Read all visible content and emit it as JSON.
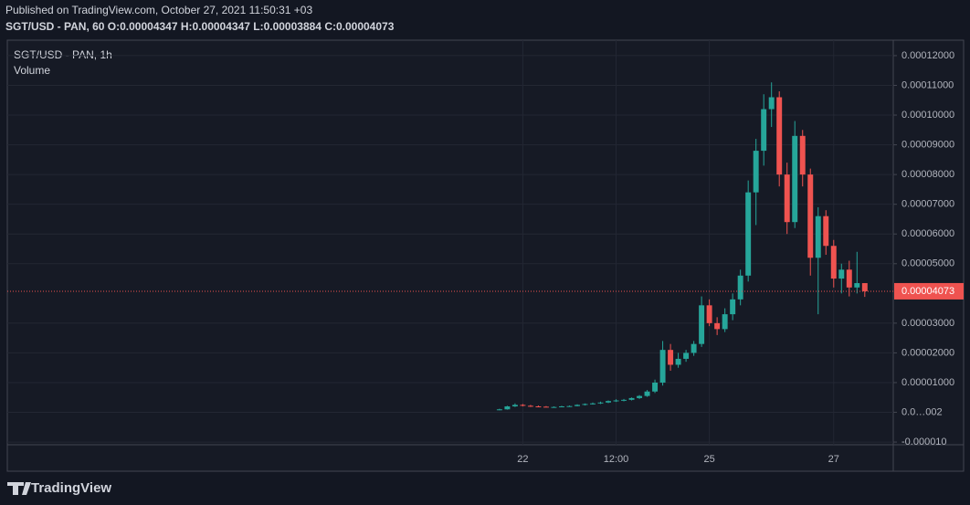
{
  "header": {
    "published": "Published on TradingView.com, October 27, 2021 11:50:31 +03",
    "ohlc": "SGT/USD - PAN, 60 O:0.00004347 H:0.00004347 L:0.00003884 C:0.00004073"
  },
  "chart_data": {
    "type": "candlestick",
    "title": "SGT/USD - PAN, 1h",
    "subtitle": "Volume",
    "up_color": "#26a69a",
    "down_color": "#ef5350",
    "grid": true,
    "x": [
      -9,
      -6,
      -3,
      0,
      3,
      6,
      9,
      12,
      15,
      18,
      21,
      24,
      27,
      30,
      33,
      36,
      39,
      42,
      45,
      48,
      51,
      54,
      57,
      60,
      63,
      66,
      69,
      72,
      75,
      78,
      81,
      84,
      87,
      90,
      93,
      96,
      99,
      102,
      105,
      108,
      111,
      114,
      117,
      120,
      123,
      126,
      129,
      132
    ],
    "open": [
      8e-07,
      1e-06,
      2e-06,
      2.5e-06,
      2.2e-06,
      2e-06,
      1.9e-06,
      1.8e-06,
      1.8e-06,
      2e-06,
      2.1e-06,
      2.5e-06,
      2.8e-06,
      3e-06,
      3.3e-06,
      3.8e-06,
      4e-06,
      4.2e-06,
      4.8e-06,
      5.5e-06,
      7e-06,
      1e-05,
      2.1e-05,
      1.6e-05,
      1.8e-05,
      2e-05,
      2.3e-05,
      3.6e-05,
      3e-05,
      2.8e-05,
      3.3e-05,
      3.8e-05,
      4.6e-05,
      7.4e-05,
      8.8e-05,
      0.000102,
      0.000106,
      8e-05,
      6.4e-05,
      9.3e-05,
      8e-05,
      5.2e-05,
      6.6e-05,
      5.6e-05,
      4.5e-05,
      4.8e-05,
      4.2e-05,
      4.347e-05
    ],
    "high": [
      1.2e-06,
      2.2e-06,
      3e-06,
      2.8e-06,
      2.5e-06,
      2.3e-06,
      2.1e-06,
      2e-06,
      2.2e-06,
      2.3e-06,
      2.7e-06,
      3e-06,
      3.3e-06,
      3.6e-06,
      4e-06,
      4.4e-06,
      4.5e-06,
      5e-06,
      5.8e-06,
      7.5e-06,
      1.1e-05,
      2.4e-05,
      2.3e-05,
      2e-05,
      2.1e-05,
      2.4e-05,
      3.9e-05,
      3.8e-05,
      3.2e-05,
      3.5e-05,
      4e-05,
      4.8e-05,
      7.8e-05,
      9.2e-05,
      0.000107,
      0.000111,
      0.000108,
      8.4e-05,
      9.8e-05,
      9.5e-05,
      8.2e-05,
      6.9e-05,
      6.8e-05,
      5.8e-05,
      5e-05,
      5.1e-05,
      5.4e-05,
      4.347e-05
    ],
    "low": [
      7e-07,
      9e-07,
      1.8e-06,
      2e-06,
      1.8e-06,
      1.7e-06,
      1.7e-06,
      1.6e-06,
      1.7e-06,
      1.9e-06,
      2e-06,
      2.3e-06,
      2.6e-06,
      2.8e-06,
      3.1e-06,
      3.5e-06,
      3.7e-06,
      4e-06,
      4.5e-06,
      5.2e-06,
      6.5e-06,
      9e-06,
      1.4e-05,
      1.5e-05,
      1.7e-05,
      1.9e-05,
      2.2e-05,
      2.9e-05,
      2.6e-05,
      2.7e-05,
      3.1e-05,
      3.6e-05,
      4.4e-05,
      6.3e-05,
      8.3e-05,
      9.6e-05,
      7.6e-05,
      6e-05,
      6.2e-05,
      7.6e-05,
      4.6e-05,
      3.3e-05,
      5.3e-05,
      4.2e-05,
      4e-05,
      3.9e-05,
      4e-05,
      3.884e-05
    ],
    "close": [
      1e-06,
      2e-06,
      2.5e-06,
      2.2e-06,
      2e-06,
      1.9e-06,
      1.8e-06,
      1.8e-06,
      2e-06,
      2.1e-06,
      2.5e-06,
      2.8e-06,
      3e-06,
      3.3e-06,
      3.8e-06,
      4e-06,
      4.2e-06,
      4.8e-06,
      5.5e-06,
      7e-06,
      1e-05,
      2.1e-05,
      1.6e-05,
      1.8e-05,
      2e-05,
      2.3e-05,
      3.6e-05,
      3e-05,
      2.8e-05,
      3.3e-05,
      3.8e-05,
      4.6e-05,
      7.4e-05,
      8.8e-05,
      0.000102,
      0.000106,
      8e-05,
      6.4e-05,
      9.3e-05,
      8e-05,
      5.2e-05,
      6.6e-05,
      5.6e-05,
      4.5e-05,
      4.8e-05,
      4.2e-05,
      4.347e-05,
      4.073e-05
    ],
    "xlim": [
      -199,
      143
    ],
    "xticks": [
      {
        "value": 0,
        "label": "22"
      },
      {
        "value": 36,
        "label": "12:00"
      },
      {
        "value": 72,
        "label": "25"
      },
      {
        "value": 120,
        "label": "27"
      }
    ],
    "ylim": [
      -1.09e-05,
      0.0001252
    ],
    "yticks": [
      {
        "value": 0.00012,
        "label": "0.00012000"
      },
      {
        "value": 0.00011,
        "label": "0.00011000"
      },
      {
        "value": 0.0001,
        "label": "0.00010000"
      },
      {
        "value": 9e-05,
        "label": "0.00009000"
      },
      {
        "value": 8e-05,
        "label": "0.00008000"
      },
      {
        "value": 7e-05,
        "label": "0.00007000"
      },
      {
        "value": 6e-05,
        "label": "0.00006000"
      },
      {
        "value": 5e-05,
        "label": "0.00005000"
      },
      {
        "value": 3e-05,
        "label": "0.00003000"
      },
      {
        "value": 2e-05,
        "label": "0.00002000"
      },
      {
        "value": 1e-05,
        "label": "0.00001000"
      },
      {
        "value": 2e-08,
        "label": "0.0…002"
      },
      {
        "value": -1e-05,
        "label": "-0.000010"
      }
    ],
    "last_price": {
      "value": 4.073e-05,
      "label": "0.00004073"
    }
  },
  "footer": {
    "logo": "TradingView"
  }
}
